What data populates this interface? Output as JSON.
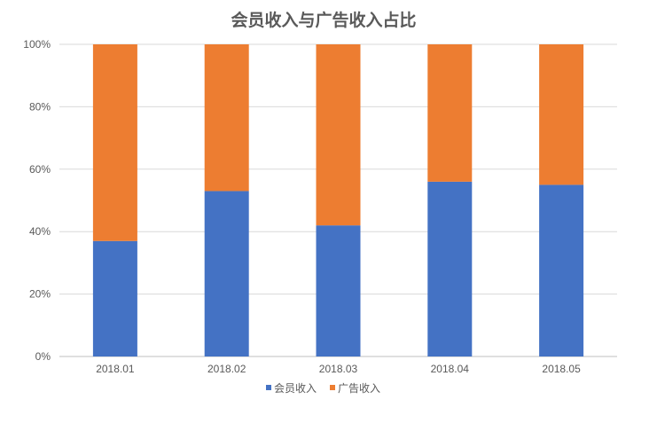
{
  "chart_data": {
    "type": "bar",
    "stacked": "percent",
    "title": "会员收入与广告收入占比",
    "xlabel": "",
    "ylabel": "",
    "categories": [
      "2018.01",
      "2018.02",
      "2018.03",
      "2018.04",
      "2018.05"
    ],
    "series": [
      {
        "name": "会员收入",
        "color": "#4472C4",
        "values": [
          37,
          53,
          42,
          56,
          55
        ]
      },
      {
        "name": "广告收入",
        "color": "#ED7D31",
        "values": [
          63,
          47,
          58,
          44,
          45
        ]
      }
    ],
    "y_ticks": [
      "0%",
      "20%",
      "40%",
      "60%",
      "80%",
      "100%"
    ],
    "ylim": [
      0,
      100
    ],
    "grid": true,
    "legend": "bottom"
  }
}
